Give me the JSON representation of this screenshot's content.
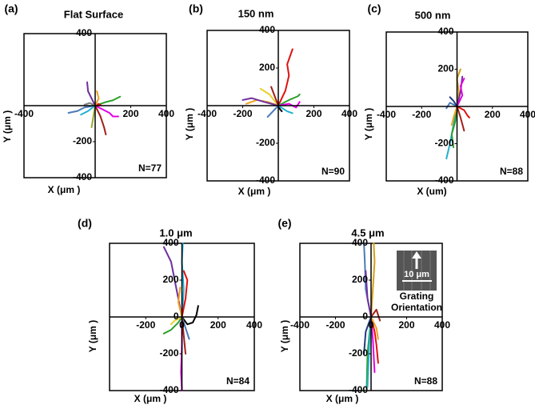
{
  "chart_data": [
    {
      "type": "line",
      "panel": "(a)",
      "title": "Flat Surface",
      "xlabel": "X (μm )",
      "ylabel": "Y (μm )",
      "note": "N=77",
      "xlim": [
        -400,
        400
      ],
      "ylim": [
        -400,
        400
      ],
      "xticks": [
        -400,
        200,
        400
      ],
      "yticks": [
        400,
        -200,
        -400
      ],
      "series": [
        {
          "color": "#e600e6",
          "x": [
            0,
            40,
            80,
            100,
            130
          ],
          "values": [
            0,
            -20,
            -40,
            -60,
            -60
          ]
        },
        {
          "color": "#a0201a",
          "x": [
            0,
            30,
            50,
            60
          ],
          "values": [
            0,
            -60,
            -120,
            -160
          ]
        },
        {
          "color": "#7030a0",
          "x": [
            0,
            -20,
            -40,
            -45
          ],
          "values": [
            0,
            40,
            80,
            130
          ]
        },
        {
          "color": "#2ca02c",
          "x": [
            0,
            60,
            100,
            140
          ],
          "values": [
            0,
            20,
            30,
            50
          ]
        },
        {
          "color": "#4a7ab8",
          "x": [
            0,
            -60,
            -100,
            -150
          ],
          "values": [
            0,
            -10,
            -30,
            -40
          ]
        },
        {
          "color": "#9aa832",
          "x": [
            0,
            -10,
            -20
          ],
          "values": [
            0,
            -60,
            -120
          ]
        },
        {
          "color": "#e01010",
          "x": [
            0,
            20,
            -10,
            30
          ],
          "values": [
            0,
            10,
            -5,
            5
          ]
        },
        {
          "color": "#20b0d0",
          "x": [
            0,
            -40,
            -80
          ],
          "values": [
            0,
            -30,
            -50
          ]
        },
        {
          "color": "#f0a020",
          "x": [
            0,
            20,
            10
          ],
          "values": [
            0,
            40,
            80
          ]
        },
        {
          "color": "#808080",
          "x": [
            0,
            -30,
            -60
          ],
          "values": [
            0,
            15,
            5
          ]
        }
      ]
    },
    {
      "type": "line",
      "panel": "(b)",
      "title": "150 nm",
      "xlabel": "X (μm )",
      "ylabel": "Y (μm )",
      "note": "N=90",
      "xlim": [
        -400,
        400
      ],
      "ylim": [
        -400,
        400
      ],
      "xticks": [
        -400,
        -200,
        200,
        400
      ],
      "yticks": [
        400,
        200,
        -200,
        -400
      ],
      "series": [
        {
          "color": "#e01010",
          "x": [
            0,
            40,
            60,
            50,
            80
          ],
          "values": [
            0,
            80,
            160,
            220,
            300
          ]
        },
        {
          "color": "#f0a020",
          "x": [
            0,
            -60,
            -120,
            -180
          ],
          "values": [
            0,
            20,
            30,
            10
          ]
        },
        {
          "color": "#7030a0",
          "x": [
            0,
            -80,
            -150,
            -200
          ],
          "values": [
            0,
            20,
            40,
            30
          ]
        },
        {
          "color": "#2ca02c",
          "x": [
            0,
            60,
            110,
            120
          ],
          "values": [
            0,
            30,
            50,
            60
          ]
        },
        {
          "color": "#4a7ab8",
          "x": [
            0,
            -40,
            -60
          ],
          "values": [
            0,
            -40,
            -60
          ]
        },
        {
          "color": "#e600e6",
          "x": [
            0,
            60,
            100,
            120
          ],
          "values": [
            0,
            10,
            -10,
            20
          ]
        },
        {
          "color": "#000000",
          "x": [
            0,
            10,
            20
          ],
          "values": [
            0,
            -20,
            -30
          ]
        },
        {
          "color": "#e8d030",
          "x": [
            0,
            -50,
            -100
          ],
          "values": [
            0,
            60,
            90
          ]
        },
        {
          "color": "#20b0d0",
          "x": [
            0,
            50,
            80
          ],
          "values": [
            0,
            -30,
            -40
          ]
        },
        {
          "color": "#a0201a",
          "x": [
            0,
            -20,
            -40
          ],
          "values": [
            0,
            50,
            100
          ]
        }
      ]
    },
    {
      "type": "line",
      "panel": "(c)",
      "title": "500 nm",
      "xlabel": "X (um)",
      "ylabel": "Y (μm )",
      "note": "N=88",
      "xlim": [
        -400,
        400
      ],
      "ylim": [
        -400,
        400
      ],
      "xticks": [
        -400,
        -200,
        200,
        400
      ],
      "yticks": [
        400,
        200,
        -200,
        -400
      ],
      "series": [
        {
          "color": "#d4a017",
          "x": [
            0,
            10,
            0,
            20
          ],
          "values": [
            0,
            80,
            150,
            200
          ]
        },
        {
          "color": "#7030a0",
          "x": [
            0,
            20,
            30
          ],
          "values": [
            0,
            80,
            160
          ]
        },
        {
          "color": "#20b0d0",
          "x": [
            0,
            -20,
            -40,
            -60
          ],
          "values": [
            0,
            -100,
            -200,
            -280
          ]
        },
        {
          "color": "#2ca02c",
          "x": [
            0,
            -10,
            -30,
            -20
          ],
          "values": [
            0,
            -80,
            -150,
            -220
          ]
        },
        {
          "color": "#e01010",
          "x": [
            0,
            40,
            60,
            70
          ],
          "values": [
            0,
            -20,
            -50,
            -60
          ]
        },
        {
          "color": "#e600e6",
          "x": [
            0,
            30,
            20,
            40
          ],
          "values": [
            0,
            60,
            110,
            150
          ]
        },
        {
          "color": "#4a7ab8",
          "x": [
            0,
            -40,
            -60
          ],
          "values": [
            0,
            20,
            -10
          ]
        },
        {
          "color": "#a0201a",
          "x": [
            0,
            20,
            40
          ],
          "values": [
            0,
            -60,
            -130
          ]
        },
        {
          "color": "#f0a020",
          "x": [
            0,
            -20,
            -30
          ],
          "values": [
            0,
            -60,
            -100
          ]
        },
        {
          "color": "#1f3a80",
          "x": [
            0,
            -20,
            -40
          ],
          "values": [
            0,
            30,
            50
          ]
        }
      ]
    },
    {
      "type": "line",
      "panel": "(d)",
      "title": "1.0 μm",
      "xlabel": "X (μm )",
      "ylabel": "Y (μm )",
      "note": "N=84",
      "xlim": [
        -400,
        400
      ],
      "ylim": [
        -400,
        400
      ],
      "xticks": [
        -200,
        0,
        200,
        400
      ],
      "yticks": [
        400,
        200,
        0,
        -200,
        -400
      ],
      "series": [
        {
          "color": "#7030a0",
          "x": [
            0,
            -30,
            -60,
            -100
          ],
          "values": [
            0,
            150,
            300,
            380
          ]
        },
        {
          "color": "#e600e6",
          "x": [
            0,
            0,
            -5,
            0
          ],
          "values": [
            0,
            -150,
            -300,
            -400
          ]
        },
        {
          "color": "#20b0d0",
          "x": [
            0,
            10,
            0,
            5
          ],
          "values": [
            0,
            150,
            300,
            400
          ]
        },
        {
          "color": "#000000",
          "x": [
            0,
            30,
            60,
            80,
            90
          ],
          "values": [
            0,
            -40,
            -30,
            10,
            60
          ]
        },
        {
          "color": "#e01010",
          "x": [
            0,
            20,
            30,
            10
          ],
          "values": [
            0,
            100,
            200,
            250
          ]
        },
        {
          "color": "#4a7ab8",
          "x": [
            0,
            20,
            40
          ],
          "values": [
            0,
            -60,
            -120
          ]
        },
        {
          "color": "#2ca02c",
          "x": [
            0,
            -20,
            -60,
            -100
          ],
          "values": [
            0,
            -30,
            -70,
            -90
          ]
        },
        {
          "color": "#e8d030",
          "x": [
            0,
            -40,
            -60
          ],
          "values": [
            0,
            -20,
            -40
          ]
        },
        {
          "color": "#f0a020",
          "x": [
            0,
            -20,
            -10
          ],
          "values": [
            0,
            80,
            160
          ]
        },
        {
          "color": "#a0201a",
          "x": [
            0,
            10,
            20
          ],
          "values": [
            0,
            -100,
            -200
          ]
        }
      ]
    },
    {
      "type": "line",
      "panel": "(e)",
      "title": "4.5 μm",
      "xlabel": "X (μm )",
      "ylabel": "Y (μm )",
      "note": "N=88",
      "annotations": [
        "10 μm",
        "Grating",
        "Orientation"
      ],
      "xlim": [
        -400,
        400
      ],
      "ylim": [
        -400,
        400
      ],
      "xticks": [
        -400,
        -200,
        0,
        200,
        400
      ],
      "yticks": [
        400,
        200,
        0,
        -200,
        -400
      ],
      "series": [
        {
          "color": "#4a7ab8",
          "x": [
            0,
            -30,
            -35,
            -40
          ],
          "values": [
            0,
            150,
            300,
            400
          ]
        },
        {
          "color": "#2ca02c",
          "x": [
            0,
            -20,
            -25
          ],
          "values": [
            0,
            -200,
            -400
          ]
        },
        {
          "color": "#d4a017",
          "x": [
            0,
            10,
            20,
            15
          ],
          "values": [
            0,
            150,
            300,
            400
          ]
        },
        {
          "color": "#e01010",
          "x": [
            0,
            20,
            30,
            40
          ],
          "values": [
            0,
            -80,
            -150,
            -250
          ]
        },
        {
          "color": "#7030a0",
          "x": [
            0,
            -20,
            -30
          ],
          "values": [
            0,
            100,
            250
          ]
        },
        {
          "color": "#e600e6",
          "x": [
            0,
            10,
            20
          ],
          "values": [
            0,
            -120,
            -300
          ]
        },
        {
          "color": "#20b0d0",
          "x": [
            0,
            -10,
            -20
          ],
          "values": [
            0,
            -150,
            -380
          ]
        },
        {
          "color": "#f0a020",
          "x": [
            0,
            30,
            40
          ],
          "values": [
            0,
            -60,
            -120
          ]
        },
        {
          "color": "#a0201a",
          "x": [
            0,
            30,
            50
          ],
          "values": [
            0,
            40,
            -20
          ]
        },
        {
          "color": "#1f3a80",
          "x": [
            0,
            -30,
            -40
          ],
          "values": [
            0,
            -80,
            -200
          ]
        }
      ]
    }
  ]
}
